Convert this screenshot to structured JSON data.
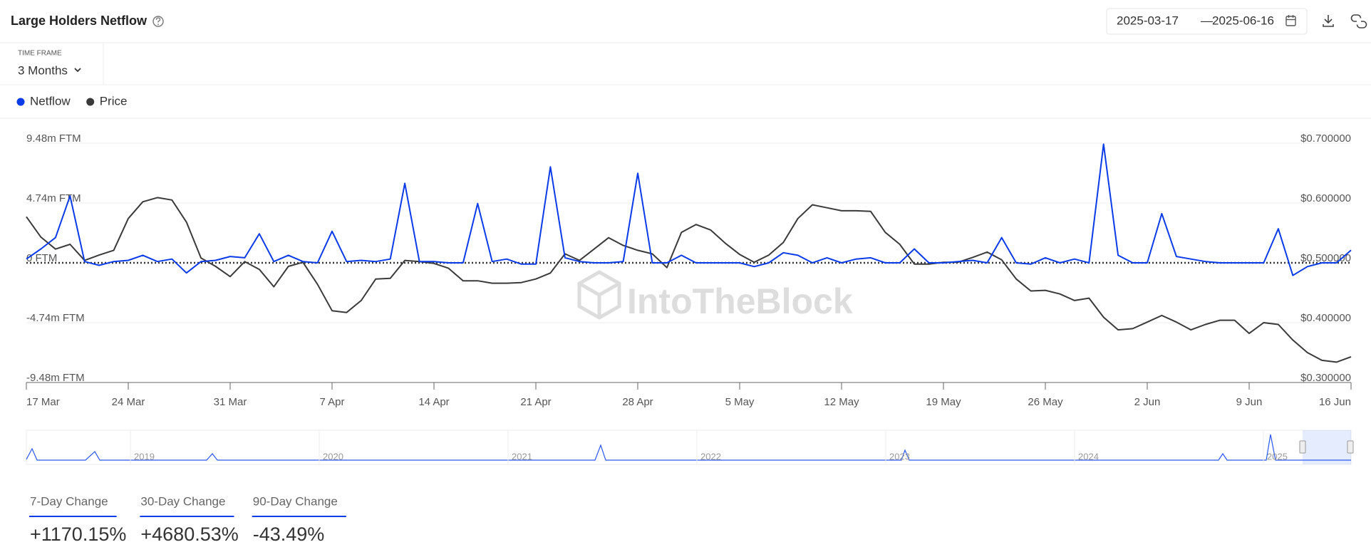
{
  "header": {
    "title": "Large Holders Netflow",
    "date_start": "2025-03-17",
    "date_separator": "—",
    "date_end": "2025-06-16",
    "time_frame_label": "TIME FRAME",
    "time_frame": "3 Months"
  },
  "chart_data": {
    "type": "line",
    "categories": [
      "17 Mar",
      null,
      null,
      null,
      null,
      null,
      null,
      "24 Mar",
      null,
      null,
      null,
      null,
      null,
      null,
      "31 Mar",
      null,
      null,
      null,
      null,
      null,
      null,
      "7 Apr",
      null,
      null,
      null,
      null,
      null,
      null,
      "14 Apr",
      null,
      null,
      null,
      null,
      null,
      null,
      "21 Apr",
      null,
      null,
      null,
      null,
      null,
      null,
      "28 Apr",
      null,
      null,
      null,
      null,
      null,
      null,
      "5 May",
      null,
      null,
      null,
      null,
      null,
      null,
      "12 May",
      null,
      null,
      null,
      null,
      null,
      null,
      "19 May",
      null,
      null,
      null,
      null,
      null,
      null,
      "26 May",
      null,
      null,
      null,
      null,
      null,
      null,
      "2 Jun",
      null,
      null,
      null,
      null,
      null,
      null,
      "9 Jun",
      null,
      null,
      null,
      null,
      null,
      null,
      "16 Jun"
    ],
    "series": [
      {
        "name": "Netflow",
        "color": "#0a3be8",
        "values": [
          300000,
          1100000,
          2000000,
          5300000,
          100000,
          -200000,
          100000,
          200000,
          600000,
          100000,
          300000,
          -800000,
          100000,
          200000,
          500000,
          400000,
          2300000,
          100000,
          600000,
          100000,
          0,
          2500000,
          100000,
          200000,
          100000,
          300000,
          6300000,
          100000,
          100000,
          0,
          0,
          4700000,
          100000,
          300000,
          -100000,
          -100000,
          7600000,
          400000,
          100000,
          0,
          0,
          100000,
          7100000,
          0,
          0,
          600000,
          0,
          0,
          0,
          0,
          -300000,
          0,
          800000,
          600000,
          0,
          400000,
          0,
          300000,
          400000,
          0,
          0,
          1100000,
          0,
          0,
          100000,
          200000,
          0,
          2000000,
          0,
          -100000,
          400000,
          0,
          300000,
          0,
          9400000,
          600000,
          0,
          0,
          3900000,
          500000,
          300000,
          100000,
          0,
          0,
          0,
          0,
          2700000,
          -1000000,
          -300000,
          0,
          0,
          1000000
        ]
      },
      {
        "name": "Price",
        "color": "#3a3a3a",
        "axis": "y2",
        "values": [
          0.577,
          0.543,
          0.523,
          0.531,
          0.504,
          0.513,
          0.521,
          0.574,
          0.602,
          0.609,
          0.605,
          0.568,
          0.508,
          0.494,
          0.477,
          0.502,
          0.489,
          0.46,
          0.494,
          0.501,
          0.464,
          0.42,
          0.417,
          0.437,
          0.473,
          0.474,
          0.504,
          0.502,
          0.499,
          0.491,
          0.47,
          0.47,
          0.466,
          0.466,
          0.467,
          0.473,
          0.483,
          0.515,
          0.504,
          0.523,
          0.542,
          0.529,
          0.521,
          0.515,
          0.492,
          0.551,
          0.564,
          0.555,
          0.533,
          0.514,
          0.501,
          0.513,
          0.534,
          0.574,
          0.597,
          0.592,
          0.587,
          0.587,
          0.586,
          0.551,
          0.531,
          0.498,
          0.498,
          0.501,
          0.501,
          0.509,
          0.518,
          0.505,
          0.473,
          0.453,
          0.454,
          0.448,
          0.437,
          0.441,
          0.409,
          0.388,
          0.39,
          0.401,
          0.412,
          0.401,
          0.388,
          0.397,
          0.404,
          0.404,
          0.382,
          0.4,
          0.397,
          0.371,
          0.35,
          0.337,
          0.334,
          0.343
        ]
      }
    ],
    "ylim": [
      -9480000,
      9480000
    ],
    "yticks": [
      {
        "value": 9480000,
        "label": "9.48m FTM"
      },
      {
        "value": 4740000,
        "label": "4.74m FTM"
      },
      {
        "value": 0,
        "label": "0 FTM"
      },
      {
        "value": -4740000,
        "label": "-4.74m FTM"
      },
      {
        "value": -9480000,
        "label": "-9.48m FTM"
      }
    ],
    "y2lim": [
      0.3,
      0.7
    ],
    "y2ticks": [
      {
        "value": 0.7,
        "label": "$0.700000"
      },
      {
        "value": 0.6,
        "label": "$0.600000"
      },
      {
        "value": 0.5,
        "label": "$0.500000"
      },
      {
        "value": 0.4,
        "label": "$0.400000"
      },
      {
        "value": 0.3,
        "label": "$0.300000"
      }
    ],
    "watermark": "IntoTheBlock"
  },
  "navigator": {
    "labels": [
      "2019",
      "2020",
      "2021",
      "2022",
      "2023",
      "2024",
      "2025"
    ]
  },
  "stats": [
    {
      "label": "7-Day Change",
      "value": "+1170.15%"
    },
    {
      "label": "30-Day Change",
      "value": "+4680.53%"
    },
    {
      "label": "90-Day Change",
      "value": "-43.49%"
    }
  ]
}
